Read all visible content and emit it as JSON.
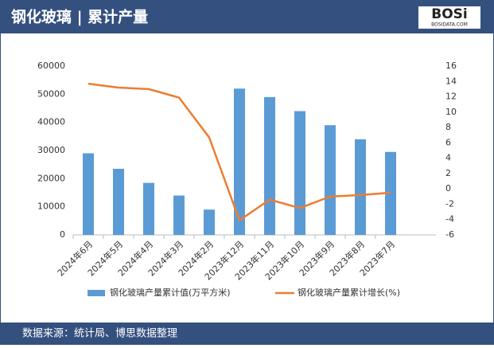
{
  "chart_data": {
    "type": "bar-line",
    "title": "钢化玻璃 | 累计产量",
    "logo": "BOSi",
    "logo_site": "BOSIDATA.COM",
    "source": "数据来源：统计局、博思数据整理",
    "categories": [
      "2024年6月",
      "2024年5月",
      "2024年4月",
      "2024年3月",
      "2024年2月",
      "2023年12月",
      "2023年11月",
      "2023年10月",
      "2023年9月",
      "2023年8月",
      "2023年7月"
    ],
    "series": [
      {
        "name": "钢化玻璃产量累计值(万平方米)",
        "type": "bar",
        "color": "#5b9bd5",
        "values": [
          29000,
          23500,
          18500,
          14000,
          9000,
          52000,
          49000,
          44000,
          39000,
          34000,
          29500
        ]
      },
      {
        "name": "钢化玻璃产量累计增长(%)",
        "type": "line",
        "axis": "y2",
        "color": "#ed7d31",
        "values": [
          13.7,
          13.2,
          13.0,
          11.9,
          6.7,
          -4.1,
          -1.4,
          -2.5,
          -1.0,
          -0.8,
          -0.5
        ]
      }
    ],
    "ylim": [
      0,
      60000
    ],
    "yticks": [
      0,
      10000,
      20000,
      30000,
      40000,
      50000,
      60000
    ],
    "y2lim": [
      -6,
      16
    ],
    "y2ticks": [
      -6,
      -4,
      -2,
      0,
      2,
      4,
      6,
      8,
      10,
      12,
      14,
      16
    ],
    "grid": false,
    "legend": "bottom"
  }
}
